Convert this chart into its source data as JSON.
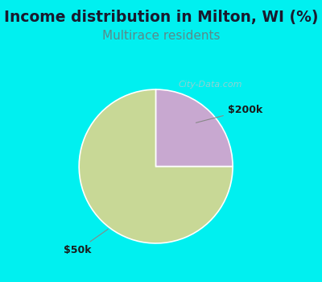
{
  "title": "Income distribution in Milton, WI (%)",
  "subtitle": "Multirace residents",
  "title_fontsize": 13.5,
  "subtitle_fontsize": 11,
  "title_color": "#1a1a2e",
  "subtitle_color": "#5a8a8a",
  "bg_color_cyan": "#00f0f0",
  "bg_color_chart": "#e8f5ee",
  "slices": [
    75.0,
    25.0
  ],
  "slice_colors": [
    "#c8d896",
    "#c8a8d0"
  ],
  "slice_labels": [
    "$50k",
    "$200k"
  ],
  "start_angle": 90,
  "figsize": [
    4.0,
    3.5
  ],
  "dpi": 100,
  "watermark": "City-Data.com"
}
